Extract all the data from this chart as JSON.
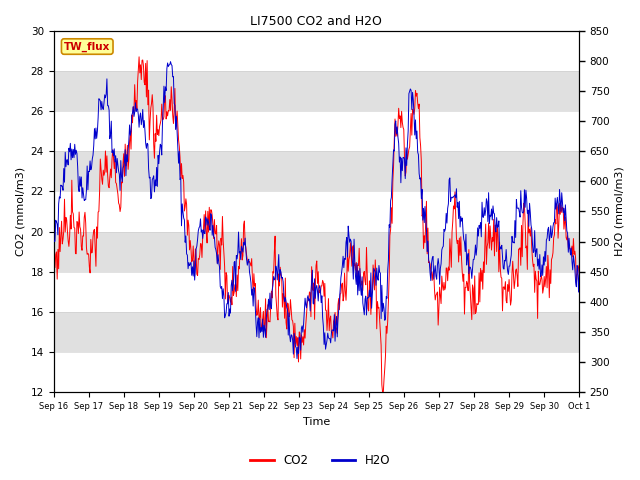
{
  "title": "LI7500 CO2 and H2O",
  "xlabel": "Time",
  "ylabel_left": "CO2 (mmol/m3)",
  "ylabel_right": "H2O (mmol/m3)",
  "co2_ylim": [
    12,
    30
  ],
  "h2o_ylim": [
    250,
    850
  ],
  "co2_yticks": [
    12,
    14,
    16,
    18,
    20,
    22,
    24,
    26,
    28,
    30
  ],
  "h2o_yticks": [
    250,
    300,
    350,
    400,
    450,
    500,
    550,
    600,
    650,
    700,
    750,
    800,
    850
  ],
  "xtick_labels": [
    "Sep 16",
    "Sep 17",
    "Sep 18",
    "Sep 19",
    "Sep 20",
    "Sep 21",
    "Sep 22",
    "Sep 23",
    "Sep 24",
    "Sep 25",
    "Sep 26",
    "Sep 27",
    "Sep 28",
    "Sep 29",
    "Sep 30",
    "Oct 1"
  ],
  "co2_color": "#ff0000",
  "h2o_color": "#0000cc",
  "background_color": "#ffffff",
  "band_color": "#e0e0e0",
  "legend_box_label": "TW_flux",
  "legend_box_facecolor": "#ffff99",
  "legend_box_edgecolor": "#cc8800",
  "band_ranges": [
    [
      14,
      16
    ],
    [
      18,
      20
    ],
    [
      22,
      24
    ],
    [
      26,
      28
    ]
  ]
}
